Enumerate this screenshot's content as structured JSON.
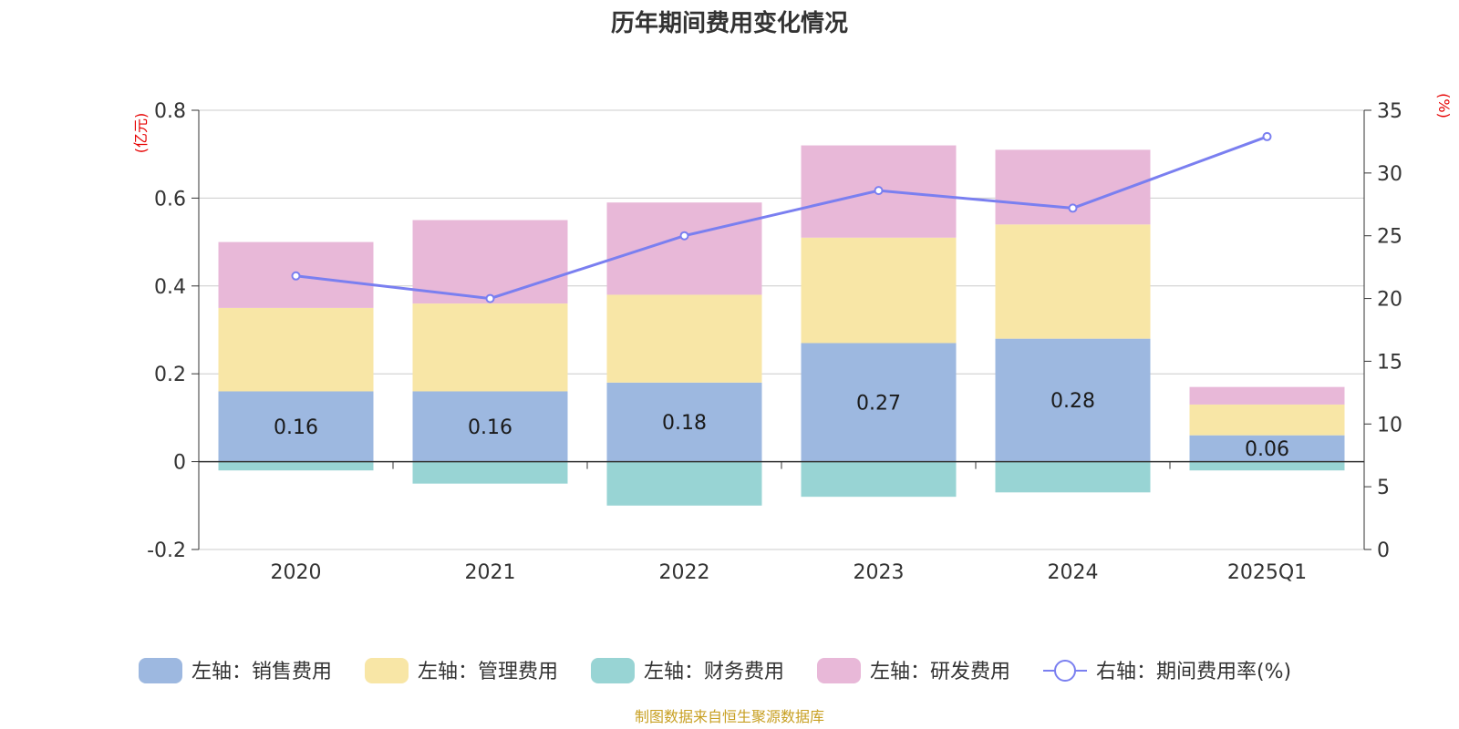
{
  "chart_data": {
    "type": "bar",
    "title": "历年期间费用变化情况",
    "categories": [
      "2020",
      "2021",
      "2022",
      "2023",
      "2024",
      "2025Q1"
    ],
    "left_axis": {
      "unit": "(亿元)",
      "range": [
        -0.2,
        0.8
      ],
      "ticks": [
        "-0.2",
        "0",
        "0.2",
        "0.4",
        "0.6",
        "0.8"
      ]
    },
    "right_axis": {
      "unit": "(%)",
      "range": [
        0,
        35
      ],
      "ticks": [
        "0",
        "5",
        "10",
        "15",
        "20",
        "25",
        "30",
        "35"
      ]
    },
    "series": [
      {
        "name": "左轴：销售费用",
        "type": "bar",
        "axis": "left",
        "color": "#9db8e0",
        "values": [
          0.16,
          0.16,
          0.18,
          0.27,
          0.28,
          0.06
        ],
        "labels": [
          "0.16",
          "0.16",
          "0.18",
          "0.27",
          "0.28",
          "0.06"
        ]
      },
      {
        "name": "左轴：管理费用",
        "type": "bar",
        "axis": "left",
        "color": "#f8e6a6",
        "values": [
          0.19,
          0.2,
          0.2,
          0.24,
          0.26,
          0.07
        ]
      },
      {
        "name": "左轴：财务费用",
        "type": "bar",
        "axis": "left",
        "color": "#98d4d4",
        "values": [
          -0.02,
          -0.05,
          -0.1,
          -0.08,
          -0.07,
          -0.02
        ]
      },
      {
        "name": "左轴：研发费用",
        "type": "bar",
        "axis": "left",
        "color": "#e8b8d8",
        "values": [
          0.15,
          0.19,
          0.21,
          0.21,
          0.17,
          0.04
        ]
      },
      {
        "name": "右轴：期间费用率(%)",
        "type": "line",
        "axis": "right",
        "color": "#7a7ff0",
        "values": [
          21.8,
          20.0,
          25.0,
          28.6,
          27.2,
          32.9
        ]
      }
    ],
    "grid": true,
    "legend_position": "bottom"
  },
  "source_note": "制图数据来自恒生聚源数据库"
}
